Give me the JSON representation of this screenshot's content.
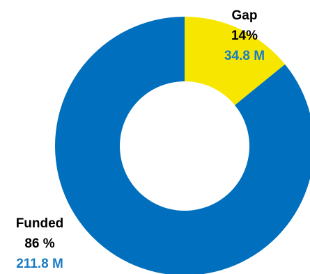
{
  "chart_data": {
    "type": "pie",
    "variant": "donut",
    "title": "",
    "slices": [
      {
        "name": "Gap",
        "percent_label": "14%",
        "value_label": "34.8 M",
        "value": 34.8,
        "color": "#F7E700"
      },
      {
        "name": "Funded",
        "percent_label": "86 %",
        "value_label": "211.8 M",
        "value": 211.8,
        "color": "#0070BE"
      }
    ],
    "value_label_color": "#1A7CC3",
    "label_color": "#000000",
    "background": "#FFFFFF"
  }
}
